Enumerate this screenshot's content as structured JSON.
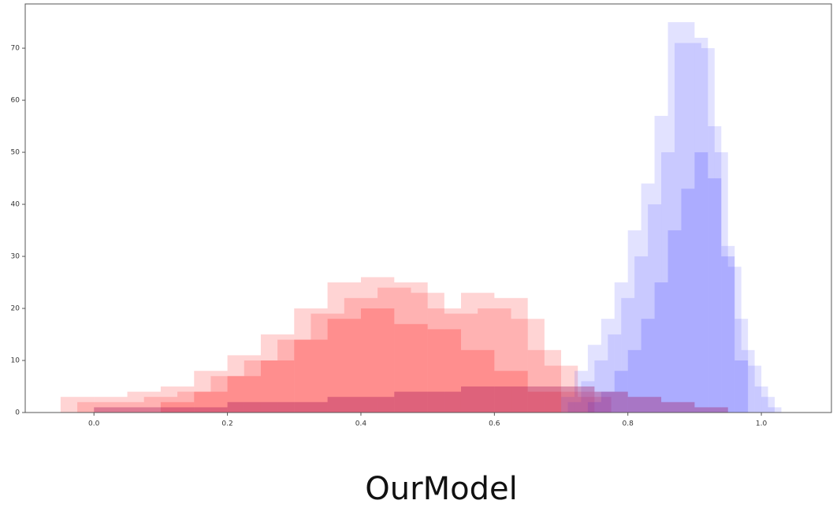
{
  "chart_data": {
    "type": "histogram",
    "title": "OurModel",
    "xlim": [
      -0.103,
      1.105
    ],
    "ylim": [
      0,
      78.5
    ],
    "xticks": [
      {
        "value": 0,
        "label": "0.0"
      },
      {
        "value": 0.2,
        "label": "0.2"
      },
      {
        "value": 0.4,
        "label": "0.4"
      },
      {
        "value": 0.6,
        "label": "0.6"
      },
      {
        "value": 0.8,
        "label": "0.8"
      },
      {
        "value": 1,
        "label": "1.0"
      }
    ],
    "yticks": [
      0,
      10,
      20,
      30,
      40,
      50,
      60,
      70
    ],
    "series": [
      {
        "color": "#ff3b3b",
        "opacity": 0.22,
        "bins": [
          -0.05,
          0,
          0.05,
          0.1,
          0.15,
          0.2,
          0.25,
          0.3,
          0.35,
          0.4,
          0.45,
          0.5,
          0.55,
          0.6,
          0.65,
          0.7,
          0.75
        ],
        "values": [
          3,
          3,
          4,
          5,
          8,
          11,
          15,
          20,
          25,
          26,
          25,
          20,
          23,
          22,
          12,
          4
        ]
      },
      {
        "color": "#ff3b3b",
        "opacity": 0.22,
        "bins": [
          -0.025,
          0.025,
          0.075,
          0.125,
          0.175,
          0.225,
          0.275,
          0.325,
          0.375,
          0.425,
          0.475,
          0.525,
          0.575,
          0.625,
          0.675,
          0.725,
          0.775
        ],
        "values": [
          2,
          2,
          3,
          4,
          7,
          10,
          14,
          19,
          22,
          24,
          23,
          19,
          20,
          18,
          9,
          3
        ]
      },
      {
        "color": "#ff3b3b",
        "opacity": 0.3,
        "bins": [
          0.1,
          0.15,
          0.2,
          0.25,
          0.3,
          0.35,
          0.4,
          0.45,
          0.5,
          0.55,
          0.6,
          0.65,
          0.7
        ],
        "values": [
          2,
          4,
          7,
          10,
          14,
          18,
          20,
          17,
          16,
          12,
          8,
          4
        ]
      },
      {
        "color": "#3b3bff",
        "opacity": 0.15,
        "bins": [
          0.7,
          0.72,
          0.74,
          0.76,
          0.78,
          0.8,
          0.82,
          0.84,
          0.86,
          0.88,
          0.9,
          0.92,
          0.94,
          0.96,
          0.98,
          1,
          1.02
        ],
        "values": [
          3,
          8,
          13,
          18,
          25,
          35,
          44,
          57,
          75,
          75,
          72,
          55,
          32,
          18,
          9,
          3
        ]
      },
      {
        "color": "#3b3bff",
        "opacity": 0.15,
        "bins": [
          0.71,
          0.73,
          0.75,
          0.77,
          0.79,
          0.81,
          0.83,
          0.85,
          0.87,
          0.89,
          0.91,
          0.93,
          0.95,
          0.97,
          0.99,
          1.01,
          1.03
        ],
        "values": [
          2,
          6,
          10,
          15,
          22,
          30,
          40,
          50,
          71,
          71,
          70,
          50,
          28,
          12,
          5,
          1
        ]
      },
      {
        "color": "#3b3bff",
        "opacity": 0.2,
        "bins": [
          0.74,
          0.76,
          0.78,
          0.8,
          0.82,
          0.84,
          0.86,
          0.88,
          0.9,
          0.92,
          0.94,
          0.96,
          0.98
        ],
        "values": [
          2,
          4,
          8,
          12,
          18,
          25,
          35,
          43,
          50,
          45,
          30,
          10
        ]
      },
      {
        "color": "#a0105a",
        "opacity": 0.35,
        "bins": [
          0,
          0.05,
          0.1,
          0.15,
          0.2,
          0.25,
          0.3,
          0.35,
          0.4,
          0.45,
          0.5,
          0.55,
          0.6,
          0.65,
          0.7,
          0.75,
          0.8,
          0.85,
          0.9,
          0.95
        ],
        "values": [
          1,
          1,
          1,
          1,
          2,
          2,
          2,
          3,
          3,
          4,
          4,
          5,
          5,
          5,
          5,
          4,
          3,
          2,
          1
        ]
      }
    ]
  }
}
